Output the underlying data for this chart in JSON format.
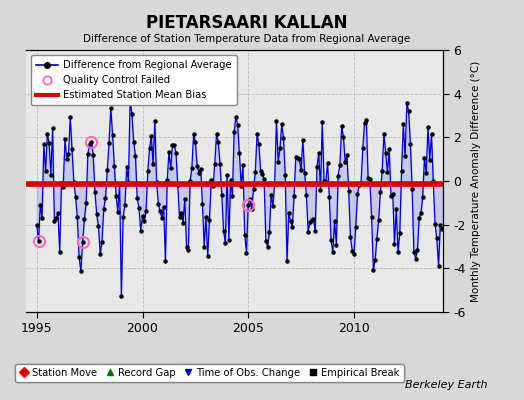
{
  "title": "PIETARSAARI KALLAN",
  "subtitle": "Difference of Station Temperature Data from Regional Average",
  "ylabel": "Monthly Temperature Anomaly Difference (°C)",
  "xlabel_ticks": [
    1995,
    2000,
    2005,
    2010
  ],
  "ylim": [
    -6,
    6
  ],
  "xlim": [
    1994.5,
    2014.2
  ],
  "yticks": [
    -6,
    -4,
    -2,
    0,
    2,
    4,
    6
  ],
  "bias_value": -0.15,
  "background_color": "#d8d8d8",
  "plot_bg_color": "#e8e8e8",
  "line_color": "#0000cc",
  "line_fill_color": "#aaaaee",
  "dot_color": "#000000",
  "bias_color": "#dd0000",
  "qc_color": "#ff69b4",
  "watermark": "Berkeley Earth",
  "seed": 12
}
